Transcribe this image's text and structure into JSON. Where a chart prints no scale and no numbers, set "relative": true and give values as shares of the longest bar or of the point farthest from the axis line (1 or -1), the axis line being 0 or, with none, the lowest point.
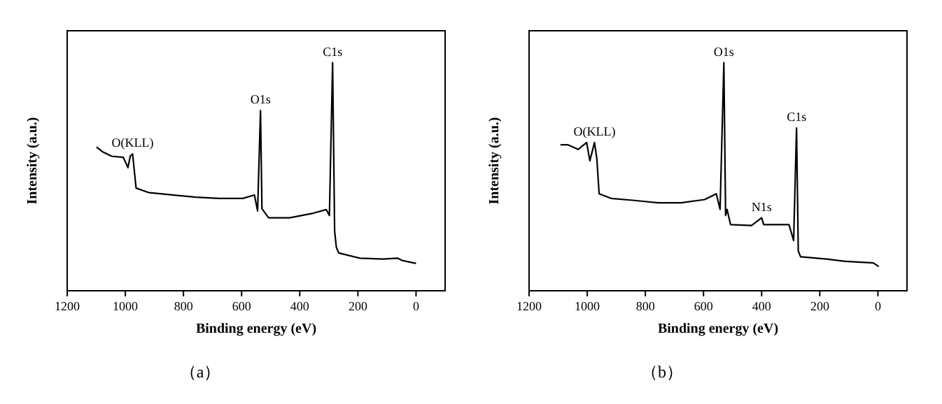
{
  "chart_data": [
    {
      "type": "line",
      "relative": true,
      "xlabel": "Binding energy (eV)",
      "ylabel": "Intensity (a.u.)",
      "xlim": [
        1200,
        -100
      ],
      "xticks": [
        1200,
        1000,
        800,
        600,
        400,
        200,
        0
      ],
      "tick_labels": "x",
      "grid": false,
      "marker": "none",
      "line_style": "solid",
      "series": [
        {
          "color": "#000000",
          "x": [
            1099,
            1079,
            1047,
            1007,
            991,
            983,
            975,
            963,
            918,
            838,
            757,
            677,
            596,
            556,
            545,
            535,
            530,
            507,
            435,
            354,
            309,
            298,
            287,
            280,
            274,
            266,
            193,
            113,
            64,
            48,
            0
          ],
          "values": [
            0.63,
            0.61,
            0.59,
            0.585,
            0.54,
            0.59,
            0.6,
            0.45,
            0.43,
            0.42,
            0.41,
            0.405,
            0.405,
            0.42,
            0.35,
            0.79,
            0.36,
            0.32,
            0.32,
            0.34,
            0.356,
            0.33,
            1.0,
            0.26,
            0.19,
            0.166,
            0.143,
            0.139,
            0.143,
            0.133,
            0.12
          ]
        }
      ],
      "annotations": [
        {
          "text": "O(KLL)",
          "x": 975,
          "y": 0.6
        },
        {
          "text": "O1s",
          "x": 535,
          "y": 0.79
        },
        {
          "text": "C1s",
          "x": 287,
          "y": 1.0
        },
        "（a）"
      ]
    },
    {
      "type": "line",
      "relative": true,
      "xlabel": "Binding energy (eV)",
      "ylabel": "Intensity (a.u.)",
      "xlim": [
        1200,
        -100
      ],
      "xticks": [
        1200,
        1000,
        800,
        600,
        400,
        200,
        0
      ],
      "tick_labels": "x",
      "grid": false,
      "marker": "none",
      "line_style": "solid",
      "series": [
        {
          "color": "#000000",
          "x": [
            1092,
            1066,
            1031,
            1002,
            991,
            975,
            967,
            959,
            918,
            838,
            757,
            677,
            596,
            556,
            543,
            530,
            524,
            519,
            507,
            435,
            400,
            393,
            306,
            290,
            280,
            274,
            266,
            177,
            113,
            16,
            -3
          ],
          "values": [
            0.64,
            0.64,
            0.62,
            0.65,
            0.57,
            0.65,
            0.58,
            0.425,
            0.405,
            0.396,
            0.386,
            0.386,
            0.4,
            0.425,
            0.357,
            1.0,
            0.33,
            0.357,
            0.29,
            0.286,
            0.32,
            0.29,
            0.29,
            0.22,
            0.714,
            0.174,
            0.149,
            0.139,
            0.129,
            0.122,
            0.106
          ]
        }
      ],
      "annotations": [
        {
          "text": "O(KLL)",
          "x": 975,
          "y": 0.65
        },
        {
          "text": "O1s",
          "x": 530,
          "y": 1.0
        },
        {
          "text": "N1s",
          "x": 400,
          "y": 0.32
        },
        {
          "text": "C1s",
          "x": 280,
          "y": 0.714
        },
        "（b）"
      ]
    }
  ]
}
